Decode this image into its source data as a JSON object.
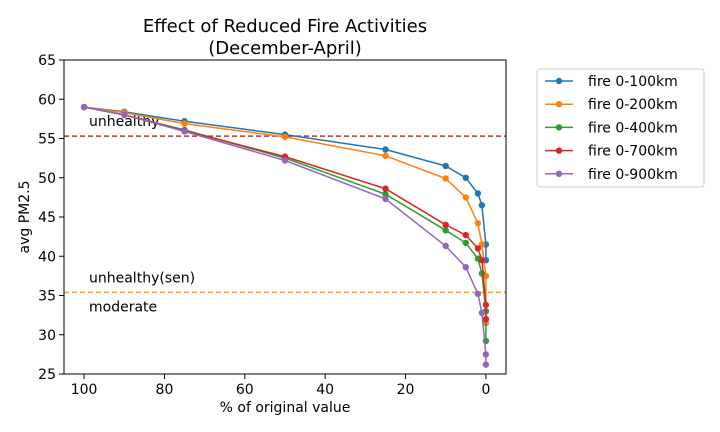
{
  "chart_data": {
    "type": "line",
    "title": "Effect of Reduced Fire Activities",
    "subtitle": "(December-April)",
    "xlabel": "% of original value",
    "ylabel": "avg PM2.5",
    "xlim": [
      105,
      -5
    ],
    "ylim": [
      25,
      65
    ],
    "xticks": [
      100,
      80,
      60,
      40,
      20,
      0
    ],
    "yticks": [
      25,
      30,
      35,
      40,
      45,
      50,
      55,
      60,
      65
    ],
    "legend_position": "outside-right",
    "reference_lines": [
      {
        "y": 55.3,
        "color": "#d62728",
        "style": "dashed",
        "label_above": "unhealthy"
      },
      {
        "y": 35.4,
        "color": "#ffa500",
        "style": "dashed",
        "label_above": "unhealthy(sen)",
        "label_below": "moderate"
      }
    ],
    "series": [
      {
        "name": "fire 0-100km",
        "color": "#1f77b4",
        "x": [
          100,
          90,
          75,
          50,
          25,
          10,
          5,
          2,
          1,
          0,
          0
        ],
        "y": [
          59.0,
          58.4,
          57.2,
          55.5,
          53.6,
          51.5,
          50.0,
          48.0,
          46.5,
          41.5,
          39.5
        ]
      },
      {
        "name": "fire 0-200km",
        "color": "#ff7f0e",
        "x": [
          100,
          90,
          75,
          50,
          25,
          10,
          5,
          2,
          1,
          0,
          0
        ],
        "y": [
          59.0,
          58.3,
          56.9,
          55.2,
          52.8,
          49.9,
          47.5,
          44.2,
          41.5,
          37.5,
          31.5
        ]
      },
      {
        "name": "fire 0-400km",
        "color": "#2ca02c",
        "x": [
          100,
          90,
          75,
          50,
          25,
          10,
          5,
          2,
          1,
          0,
          0
        ],
        "y": [
          59.0,
          58.0,
          56.1,
          52.5,
          47.9,
          43.3,
          41.7,
          39.7,
          37.8,
          33.0,
          29.2
        ]
      },
      {
        "name": "fire 0-700km",
        "color": "#d62728",
        "x": [
          100,
          90,
          75,
          50,
          25,
          10,
          5,
          2,
          1,
          0,
          0
        ],
        "y": [
          59.0,
          58.0,
          56.0,
          52.7,
          48.6,
          44.0,
          42.7,
          41.0,
          39.5,
          33.8,
          32.0
        ]
      },
      {
        "name": "fire 0-900km",
        "color": "#9467bd",
        "x": [
          100,
          90,
          75,
          50,
          25,
          10,
          5,
          2,
          1,
          0,
          0
        ],
        "y": [
          59.0,
          58.0,
          55.9,
          52.2,
          47.3,
          41.3,
          38.6,
          35.2,
          32.8,
          27.5,
          26.2
        ]
      }
    ]
  }
}
